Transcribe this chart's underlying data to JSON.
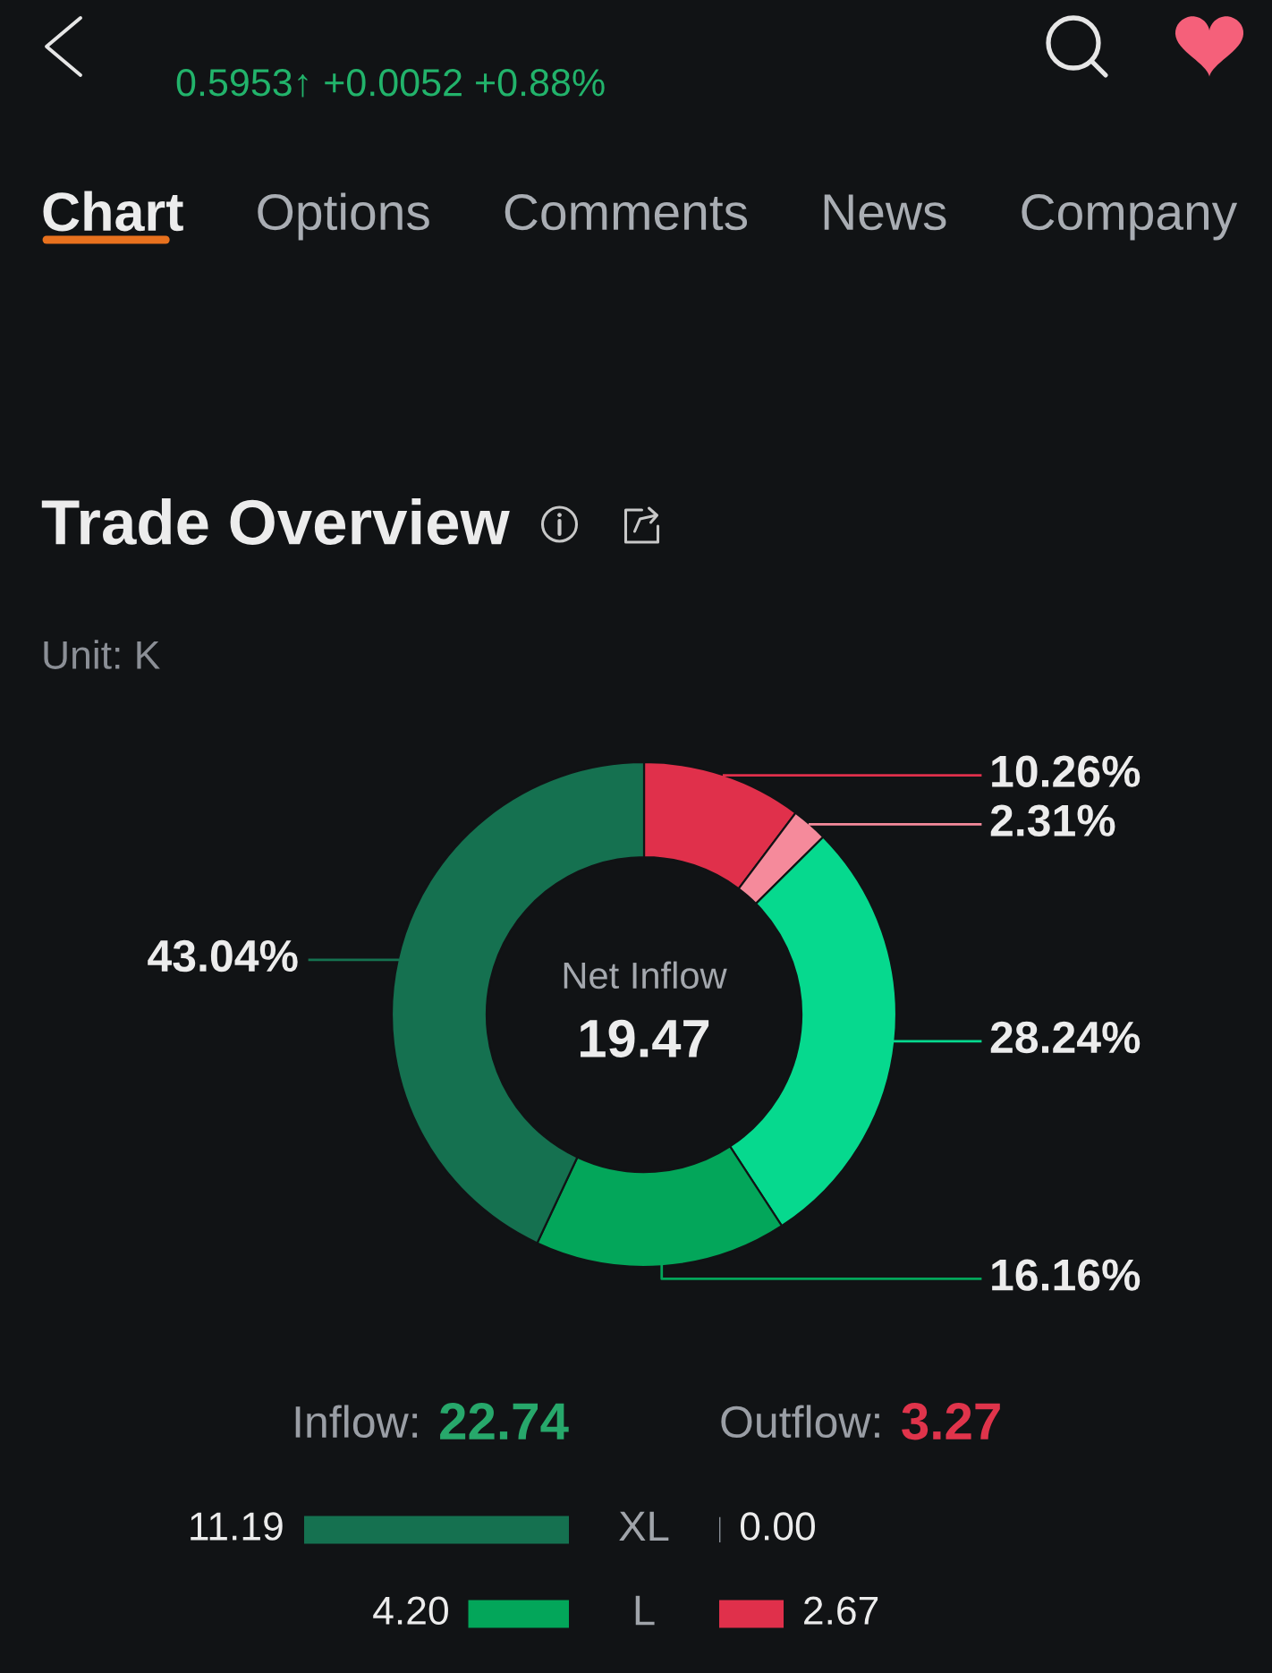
{
  "chart_data": [
    {
      "type": "other",
      "annotations": [
        "0.5953↑ +0.0052 +0.88%",
        "Chart",
        "Options",
        "Comments",
        "News",
        "Company"
      ]
    },
    {
      "type": "donut",
      "title": "Trade Overview",
      "subtitle": "Unit: K",
      "categories": [
        null,
        null,
        null,
        null,
        null
      ],
      "values": [
        10.26,
        2.31,
        28.24,
        16.16,
        43.04
      ],
      "colors": [
        "#e0304b",
        "#f58a9b",
        "#06d98e",
        "#03a65a",
        "#157150"
      ],
      "value_labels": [
        "10.26%",
        "2.31%",
        "28.24%",
        "16.16%",
        "43.04%"
      ],
      "annotations": [
        "Net Inflow",
        "19.47"
      ]
    },
    {
      "type": "bar",
      "orientation": "horizontal",
      "categories": [
        "XL",
        "L"
      ],
      "series": [
        {
          "name": "Inflow:",
          "colors": [
            "#157150",
            "#03a65a"
          ],
          "values": [
            11.19,
            4.2
          ],
          "value_labels": [
            "11.19",
            "4.20"
          ]
        }
      ],
      "annotations": [
        "22.74"
      ]
    },
    {
      "type": "bar",
      "orientation": "horizontal",
      "categories": [
        null,
        null
      ],
      "series": [
        {
          "name": "Outflow:",
          "colors": [
            "#8a9099",
            "#e0304b"
          ],
          "values": [
            0,
            2.67
          ],
          "value_labels": [
            "0.00",
            "2.67"
          ]
        }
      ],
      "annotations": [
        "3.27"
      ]
    }
  ]
}
